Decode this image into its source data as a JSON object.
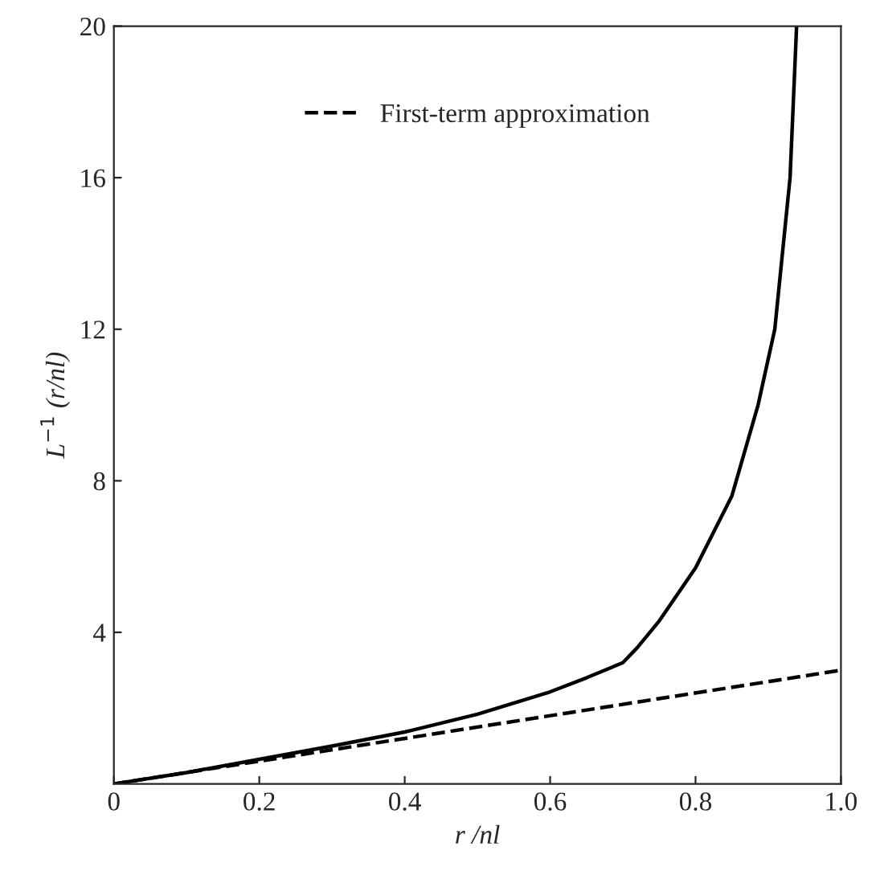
{
  "chart_data": {
    "type": "line",
    "xlabel": "r /nl",
    "ylabel": "L$^{−1}$ (r/nl)",
    "xlim": [
      0,
      1
    ],
    "ylim": [
      0,
      20
    ],
    "xticks": [
      0,
      0.2,
      0.4,
      0.6,
      0.8,
      {
        "value": 1,
        "label": "1.0"
      }
    ],
    "yticks": [
      4,
      8,
      12,
      16,
      20
    ],
    "grid": false,
    "legend": "top",
    "series": [
      {
        "color": "#000000",
        "line_style": "solid",
        "x": [
          0,
          0.1,
          0.2,
          0.3,
          0.4,
          0.5,
          0.6,
          0.65,
          0.7,
          0.72,
          0.75,
          0.8,
          0.85,
          0.886,
          0.909,
          0.93,
          0.939
        ],
        "values": [
          0,
          0.3,
          0.65,
          1.0,
          1.37,
          1.84,
          2.43,
          2.8,
          3.2,
          3.6,
          4.3,
          5.7,
          7.6,
          10,
          12,
          16,
          20
        ]
      },
      {
        "name": "First-term approximation",
        "color": "#000000",
        "line_style": "dashed",
        "x": [
          0,
          1
        ],
        "values": [
          0,
          3
        ]
      }
    ]
  }
}
